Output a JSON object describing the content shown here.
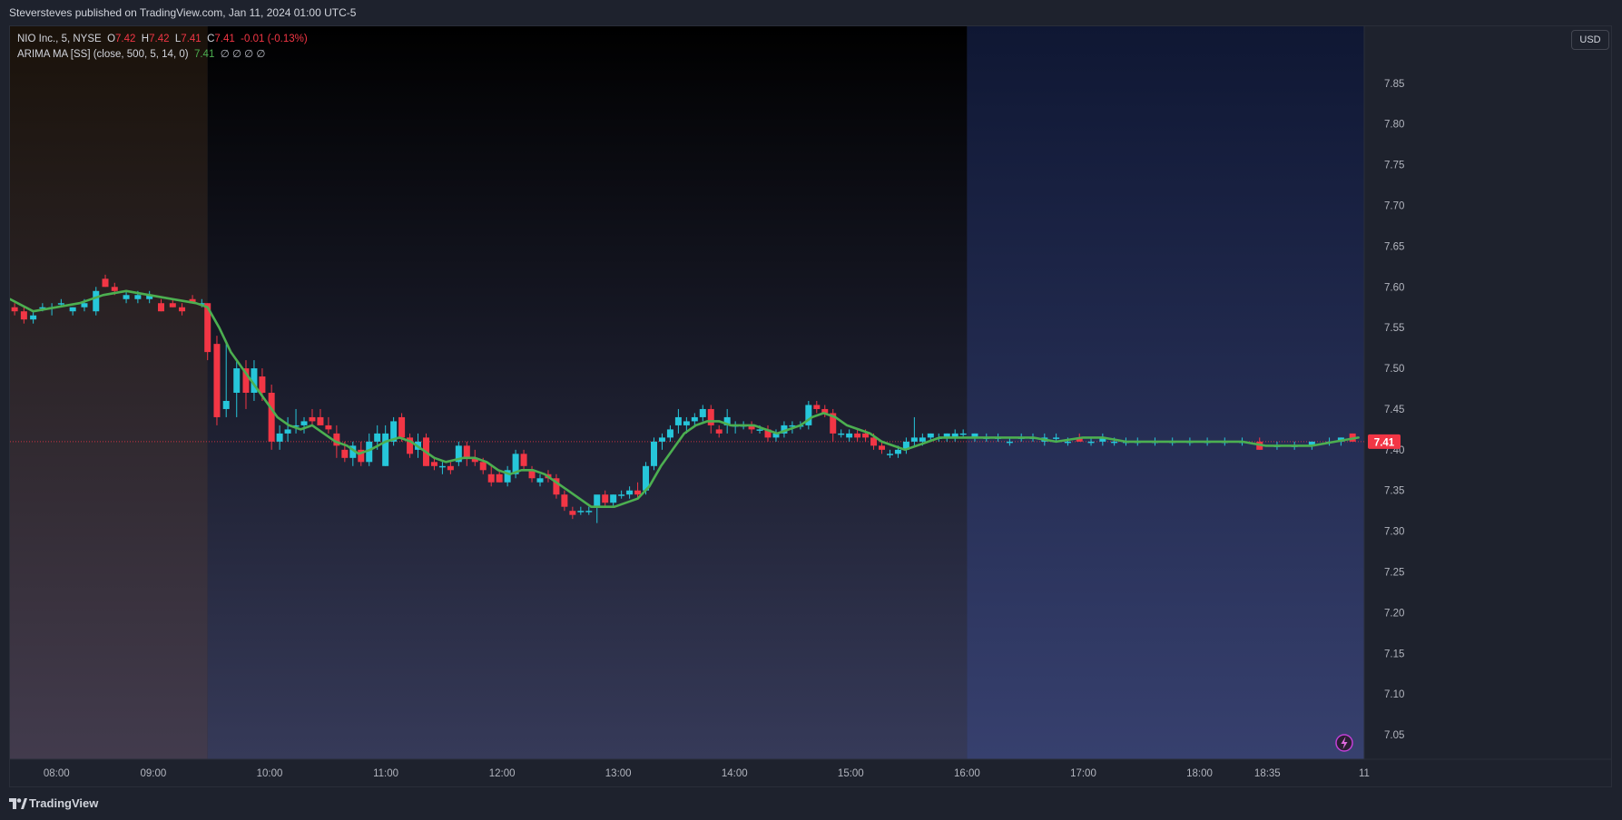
{
  "header": {
    "published": "Steversteves published on TradingView.com, Jan 11, 2024 01:00 UTC-5"
  },
  "legend": {
    "symbol": "NIO Inc., 5, NYSE",
    "o_label": "O",
    "o_value": "7.42",
    "h_label": "H",
    "h_value": "7.42",
    "l_label": "L",
    "l_value": "7.41",
    "c_label": "C",
    "c_value": "7.41",
    "change": "-0.01 (-0.13%)",
    "indicator": "ARIMA MA [SS] (close, 500, 5, 14, 0)",
    "indicator_value": "7.41",
    "indicator_extras": "∅  ∅  ∅  ∅"
  },
  "currency": "USD",
  "footer": {
    "brand": "TradingView"
  },
  "colors": {
    "up": "#26c6da",
    "down": "#f23645",
    "ma": "#4caf50",
    "last_price": "#f23645"
  },
  "chart_data": {
    "type": "candlestick",
    "symbol": "NIO Inc.",
    "interval": "5",
    "exchange": "NYSE",
    "ylim": [
      7.02,
      7.92
    ],
    "y_ticks": [
      "7.05",
      "7.10",
      "7.15",
      "7.20",
      "7.25",
      "7.30",
      "7.35",
      "7.40",
      "7.45",
      "7.50",
      "7.55",
      "7.60",
      "7.65",
      "7.70",
      "7.75",
      "7.80",
      "7.85"
    ],
    "x_ticks": [
      {
        "label": "08:00",
        "t": 8.0
      },
      {
        "label": "09:00",
        "t": 8.833
      },
      {
        "label": "10:00",
        "t": 9.833
      },
      {
        "label": "11:00",
        "t": 10.833
      },
      {
        "label": "12:00",
        "t": 11.833
      },
      {
        "label": "13:00",
        "t": 12.833
      },
      {
        "label": "14:00",
        "t": 13.833
      },
      {
        "label": "15:00",
        "t": 14.833
      },
      {
        "label": "16:00",
        "t": 15.833
      },
      {
        "label": "17:00",
        "t": 16.833
      },
      {
        "label": "18:00",
        "t": 17.833
      },
      {
        "label": "18:35",
        "t": 18.417
      },
      {
        "label": "11",
        "t": 19.25
      }
    ],
    "t_range": [
      7.6,
      19.25
    ],
    "last_price": "7.41",
    "sessions": [
      {
        "name": "pre-market",
        "from": 7.6,
        "to": 9.3
      },
      {
        "name": "regular",
        "from": 9.3,
        "to": 15.833
      },
      {
        "name": "post-market",
        "from": 15.833,
        "to": 19.25
      }
    ],
    "candles": [
      [
        7.64,
        7.575,
        7.58,
        7.565,
        7.57
      ],
      [
        7.72,
        7.57,
        7.575,
        7.555,
        7.56
      ],
      [
        7.8,
        7.56,
        7.57,
        7.555,
        7.565
      ],
      [
        7.88,
        7.575,
        7.58,
        7.57,
        7.575
      ],
      [
        7.96,
        7.575,
        7.58,
        7.565,
        7.575
      ],
      [
        8.04,
        7.58,
        7.585,
        7.575,
        7.58
      ],
      [
        8.14,
        7.57,
        7.575,
        7.565,
        7.575
      ],
      [
        8.24,
        7.575,
        7.585,
        7.57,
        7.58
      ],
      [
        8.34,
        7.57,
        7.6,
        7.565,
        7.595
      ],
      [
        8.42,
        7.61,
        7.615,
        7.6,
        7.6
      ],
      [
        8.5,
        7.6,
        7.605,
        7.59,
        7.595
      ],
      [
        8.6,
        7.585,
        7.595,
        7.58,
        7.59
      ],
      [
        8.7,
        7.585,
        7.595,
        7.58,
        7.59
      ],
      [
        8.8,
        7.585,
        7.595,
        7.58,
        7.59
      ],
      [
        8.9,
        7.58,
        7.585,
        7.57,
        7.57
      ],
      [
        9.0,
        7.58,
        7.585,
        7.575,
        7.575
      ],
      [
        9.08,
        7.575,
        7.58,
        7.565,
        7.57
      ],
      [
        9.17,
        7.585,
        7.59,
        7.58,
        7.58
      ],
      [
        9.25,
        7.58,
        7.585,
        7.575,
        7.58
      ],
      [
        9.3,
        7.58,
        7.58,
        7.51,
        7.52
      ],
      [
        9.38,
        7.53,
        7.54,
        7.43,
        7.44
      ],
      [
        9.46,
        7.45,
        7.53,
        7.44,
        7.46
      ],
      [
        9.55,
        7.47,
        7.51,
        7.44,
        7.5
      ],
      [
        9.63,
        7.5,
        7.51,
        7.45,
        7.47
      ],
      [
        9.7,
        7.47,
        7.51,
        7.46,
        7.5
      ],
      [
        9.77,
        7.49,
        7.5,
        7.46,
        7.47
      ],
      [
        9.85,
        7.47,
        7.48,
        7.4,
        7.41
      ],
      [
        9.92,
        7.41,
        7.43,
        7.4,
        7.42
      ],
      [
        9.99,
        7.42,
        7.44,
        7.41,
        7.425
      ],
      [
        10.06,
        7.43,
        7.45,
        7.42,
        7.43
      ],
      [
        10.13,
        7.43,
        7.44,
        7.42,
        7.435
      ],
      [
        10.2,
        7.44,
        7.45,
        7.43,
        7.435
      ],
      [
        10.27,
        7.44,
        7.45,
        7.43,
        7.43
      ],
      [
        10.34,
        7.43,
        7.44,
        7.42,
        7.425
      ],
      [
        10.41,
        7.42,
        7.43,
        7.39,
        7.405
      ],
      [
        10.48,
        7.4,
        7.41,
        7.385,
        7.39
      ],
      [
        10.55,
        7.39,
        7.41,
        7.38,
        7.405
      ],
      [
        10.62,
        7.4,
        7.41,
        7.38,
        7.385
      ],
      [
        10.69,
        7.385,
        7.42,
        7.38,
        7.41
      ],
      [
        10.76,
        7.41,
        7.43,
        7.4,
        7.42
      ],
      [
        10.83,
        7.38,
        7.43,
        7.38,
        7.42
      ],
      [
        10.9,
        7.41,
        7.44,
        7.405,
        7.435
      ],
      [
        10.97,
        7.44,
        7.445,
        7.41,
        7.415
      ],
      [
        11.04,
        7.415,
        7.42,
        7.39,
        7.395
      ],
      [
        11.11,
        7.4,
        7.42,
        7.39,
        7.41
      ],
      [
        11.18,
        7.415,
        7.42,
        7.38,
        7.38
      ],
      [
        11.25,
        7.385,
        7.39,
        7.375,
        7.38
      ],
      [
        11.32,
        7.38,
        7.385,
        7.37,
        7.38
      ],
      [
        11.39,
        7.38,
        7.385,
        7.37,
        7.375
      ],
      [
        11.46,
        7.385,
        7.41,
        7.38,
        7.405
      ],
      [
        11.53,
        7.405,
        7.41,
        7.38,
        7.39
      ],
      [
        11.6,
        7.39,
        7.4,
        7.38,
        7.385
      ],
      [
        11.67,
        7.385,
        7.39,
        7.37,
        7.375
      ],
      [
        11.74,
        7.37,
        7.38,
        7.355,
        7.36
      ],
      [
        11.81,
        7.37,
        7.375,
        7.36,
        7.36
      ],
      [
        11.88,
        7.36,
        7.38,
        7.355,
        7.375
      ],
      [
        11.95,
        7.37,
        7.4,
        7.365,
        7.395
      ],
      [
        12.02,
        7.395,
        7.4,
        7.375,
        7.38
      ],
      [
        12.09,
        7.375,
        7.38,
        7.36,
        7.365
      ],
      [
        12.16,
        7.36,
        7.37,
        7.355,
        7.365
      ],
      [
        12.23,
        7.37,
        7.375,
        7.36,
        7.365
      ],
      [
        12.3,
        7.365,
        7.37,
        7.34,
        7.345
      ],
      [
        12.37,
        7.345,
        7.35,
        7.325,
        7.33
      ],
      [
        12.44,
        7.325,
        7.33,
        7.315,
        7.32
      ],
      [
        12.51,
        7.325,
        7.33,
        7.32,
        7.325
      ],
      [
        12.58,
        7.325,
        7.33,
        7.32,
        7.325
      ],
      [
        12.65,
        7.33,
        7.34,
        7.31,
        7.345
      ],
      [
        12.72,
        7.345,
        7.35,
        7.33,
        7.335
      ],
      [
        12.79,
        7.335,
        7.345,
        7.33,
        7.345
      ],
      [
        12.86,
        7.345,
        7.35,
        7.34,
        7.345
      ],
      [
        12.93,
        7.345,
        7.355,
        7.34,
        7.35
      ],
      [
        13.0,
        7.35,
        7.36,
        7.34,
        7.345
      ],
      [
        13.07,
        7.35,
        7.385,
        7.345,
        7.38
      ],
      [
        13.14,
        7.38,
        7.415,
        7.375,
        7.41
      ],
      [
        13.21,
        7.41,
        7.42,
        7.4,
        7.415
      ],
      [
        13.28,
        7.415,
        7.43,
        7.41,
        7.425
      ],
      [
        13.35,
        7.43,
        7.45,
        7.42,
        7.44
      ],
      [
        13.42,
        7.43,
        7.44,
        7.42,
        7.435
      ],
      [
        13.49,
        7.435,
        7.445,
        7.43,
        7.44
      ],
      [
        13.56,
        7.44,
        7.455,
        7.435,
        7.45
      ],
      [
        13.63,
        7.45,
        7.455,
        7.42,
        7.43
      ],
      [
        13.7,
        7.425,
        7.43,
        7.415,
        7.42
      ],
      [
        13.77,
        7.43,
        7.45,
        7.42,
        7.44
      ],
      [
        13.84,
        7.43,
        7.435,
        7.42,
        7.43
      ],
      [
        13.91,
        7.43,
        7.435,
        7.425,
        7.43
      ],
      [
        13.98,
        7.43,
        7.435,
        7.42,
        7.425
      ],
      [
        14.05,
        7.425,
        7.43,
        7.42,
        7.425
      ],
      [
        14.12,
        7.425,
        7.43,
        7.41,
        7.415
      ],
      [
        14.19,
        7.415,
        7.425,
        7.41,
        7.42
      ],
      [
        14.26,
        7.42,
        7.435,
        7.415,
        7.43
      ],
      [
        14.33,
        7.43,
        7.435,
        7.42,
        7.43
      ],
      [
        14.4,
        7.43,
        7.435,
        7.425,
        7.43
      ],
      [
        14.47,
        7.43,
        7.46,
        7.425,
        7.455
      ],
      [
        14.54,
        7.455,
        7.46,
        7.445,
        7.45
      ],
      [
        14.61,
        7.45,
        7.455,
        7.44,
        7.445
      ],
      [
        14.68,
        7.445,
        7.45,
        7.41,
        7.42
      ],
      [
        14.75,
        7.42,
        7.425,
        7.415,
        7.42
      ],
      [
        14.82,
        7.415,
        7.425,
        7.41,
        7.42
      ],
      [
        14.89,
        7.42,
        7.425,
        7.41,
        7.415
      ],
      [
        14.96,
        7.42,
        7.425,
        7.41,
        7.415
      ],
      [
        15.03,
        7.415,
        7.42,
        7.4,
        7.405
      ],
      [
        15.1,
        7.405,
        7.41,
        7.395,
        7.4
      ],
      [
        15.17,
        7.395,
        7.4,
        7.39,
        7.395
      ],
      [
        15.24,
        7.395,
        7.405,
        7.39,
        7.4
      ],
      [
        15.31,
        7.4,
        7.415,
        7.395,
        7.41
      ],
      [
        15.38,
        7.41,
        7.44,
        7.405,
        7.415
      ],
      [
        15.45,
        7.41,
        7.42,
        7.405,
        7.415
      ],
      [
        15.52,
        7.415,
        7.42,
        7.41,
        7.42
      ],
      [
        15.59,
        7.415,
        7.42,
        7.41,
        7.415
      ],
      [
        15.66,
        7.415,
        7.42,
        7.41,
        7.42
      ],
      [
        15.73,
        7.415,
        7.425,
        7.41,
        7.42
      ],
      [
        15.8,
        7.42,
        7.425,
        7.415,
        7.42
      ],
      [
        15.9,
        7.415,
        7.42,
        7.41,
        7.42
      ],
      [
        16.0,
        7.415,
        7.42,
        7.41,
        7.415
      ],
      [
        16.1,
        7.415,
        7.42,
        7.41,
        7.415
      ],
      [
        16.2,
        7.41,
        7.415,
        7.405,
        7.41
      ],
      [
        16.3,
        7.415,
        7.42,
        7.41,
        7.415
      ],
      [
        16.4,
        7.415,
        7.42,
        7.41,
        7.415
      ],
      [
        16.5,
        7.41,
        7.42,
        7.405,
        7.415
      ],
      [
        16.6,
        7.415,
        7.42,
        7.41,
        7.415
      ],
      [
        16.7,
        7.41,
        7.415,
        7.405,
        7.41
      ],
      [
        16.8,
        7.415,
        7.42,
        7.41,
        7.41
      ],
      [
        16.9,
        7.41,
        7.415,
        7.405,
        7.41
      ],
      [
        17.0,
        7.41,
        7.42,
        7.405,
        7.415
      ],
      [
        17.1,
        7.41,
        7.415,
        7.405,
        7.41
      ],
      [
        17.2,
        7.41,
        7.415,
        7.405,
        7.41
      ],
      [
        17.3,
        7.41,
        7.415,
        7.405,
        7.41
      ],
      [
        17.45,
        7.41,
        7.415,
        7.405,
        7.41
      ],
      [
        17.6,
        7.41,
        7.415,
        7.405,
        7.41
      ],
      [
        17.75,
        7.41,
        7.415,
        7.405,
        7.41
      ],
      [
        17.9,
        7.41,
        7.415,
        7.405,
        7.41
      ],
      [
        18.05,
        7.41,
        7.415,
        7.405,
        7.41
      ],
      [
        18.2,
        7.41,
        7.415,
        7.405,
        7.41
      ],
      [
        18.35,
        7.41,
        7.415,
        7.4,
        7.4
      ],
      [
        18.5,
        7.405,
        7.41,
        7.4,
        7.405
      ],
      [
        18.65,
        7.405,
        7.41,
        7.4,
        7.405
      ],
      [
        18.8,
        7.405,
        7.41,
        7.4,
        7.41
      ],
      [
        18.95,
        7.41,
        7.415,
        7.405,
        7.41
      ],
      [
        19.05,
        7.41,
        7.415,
        7.405,
        7.415
      ],
      [
        19.15,
        7.42,
        7.42,
        7.41,
        7.41
      ]
    ],
    "ma_series": {
      "name": "ARIMA MA [SS]",
      "points": [
        [
          7.6,
          7.585
        ],
        [
          7.8,
          7.57
        ],
        [
          8.0,
          7.575
        ],
        [
          8.2,
          7.58
        ],
        [
          8.4,
          7.59
        ],
        [
          8.6,
          7.595
        ],
        [
          8.8,
          7.59
        ],
        [
          9.0,
          7.585
        ],
        [
          9.2,
          7.58
        ],
        [
          9.3,
          7.575
        ],
        [
          9.4,
          7.55
        ],
        [
          9.5,
          7.52
        ],
        [
          9.6,
          7.5
        ],
        [
          9.7,
          7.48
        ],
        [
          9.8,
          7.46
        ],
        [
          9.9,
          7.44
        ],
        [
          10.0,
          7.43
        ],
        [
          10.1,
          7.425
        ],
        [
          10.2,
          7.43
        ],
        [
          10.3,
          7.42
        ],
        [
          10.4,
          7.41
        ],
        [
          10.5,
          7.405
        ],
        [
          10.6,
          7.395
        ],
        [
          10.7,
          7.4
        ],
        [
          10.83,
          7.41
        ],
        [
          10.95,
          7.415
        ],
        [
          11.05,
          7.41
        ],
        [
          11.15,
          7.4
        ],
        [
          11.25,
          7.39
        ],
        [
          11.35,
          7.385
        ],
        [
          11.5,
          7.39
        ],
        [
          11.6,
          7.39
        ],
        [
          11.7,
          7.385
        ],
        [
          11.8,
          7.375
        ],
        [
          11.9,
          7.37
        ],
        [
          12.0,
          7.375
        ],
        [
          12.1,
          7.375
        ],
        [
          12.2,
          7.37
        ],
        [
          12.3,
          7.36
        ],
        [
          12.4,
          7.35
        ],
        [
          12.5,
          7.34
        ],
        [
          12.6,
          7.33
        ],
        [
          12.7,
          7.33
        ],
        [
          12.8,
          7.33
        ],
        [
          12.9,
          7.335
        ],
        [
          13.0,
          7.34
        ],
        [
          13.1,
          7.355
        ],
        [
          13.2,
          7.38
        ],
        [
          13.3,
          7.4
        ],
        [
          13.4,
          7.42
        ],
        [
          13.5,
          7.43
        ],
        [
          13.6,
          7.435
        ],
        [
          13.7,
          7.435
        ],
        [
          13.8,
          7.43
        ],
        [
          13.9,
          7.43
        ],
        [
          14.0,
          7.43
        ],
        [
          14.1,
          7.425
        ],
        [
          14.2,
          7.42
        ],
        [
          14.3,
          7.425
        ],
        [
          14.4,
          7.43
        ],
        [
          14.5,
          7.44
        ],
        [
          14.6,
          7.445
        ],
        [
          14.7,
          7.44
        ],
        [
          14.8,
          7.43
        ],
        [
          14.9,
          7.425
        ],
        [
          15.0,
          7.42
        ],
        [
          15.1,
          7.41
        ],
        [
          15.2,
          7.405
        ],
        [
          15.3,
          7.4
        ],
        [
          15.4,
          7.405
        ],
        [
          15.5,
          7.41
        ],
        [
          15.6,
          7.415
        ],
        [
          15.7,
          7.415
        ],
        [
          15.8,
          7.415
        ],
        [
          16.0,
          7.415
        ],
        [
          16.2,
          7.415
        ],
        [
          16.4,
          7.415
        ],
        [
          16.6,
          7.41
        ],
        [
          16.83,
          7.415
        ],
        [
          17.0,
          7.415
        ],
        [
          17.2,
          7.41
        ],
        [
          17.4,
          7.41
        ],
        [
          17.6,
          7.41
        ],
        [
          17.8,
          7.41
        ],
        [
          18.0,
          7.41
        ],
        [
          18.2,
          7.41
        ],
        [
          18.4,
          7.405
        ],
        [
          18.6,
          7.405
        ],
        [
          18.8,
          7.405
        ],
        [
          19.0,
          7.41
        ],
        [
          19.2,
          7.415
        ]
      ]
    }
  }
}
